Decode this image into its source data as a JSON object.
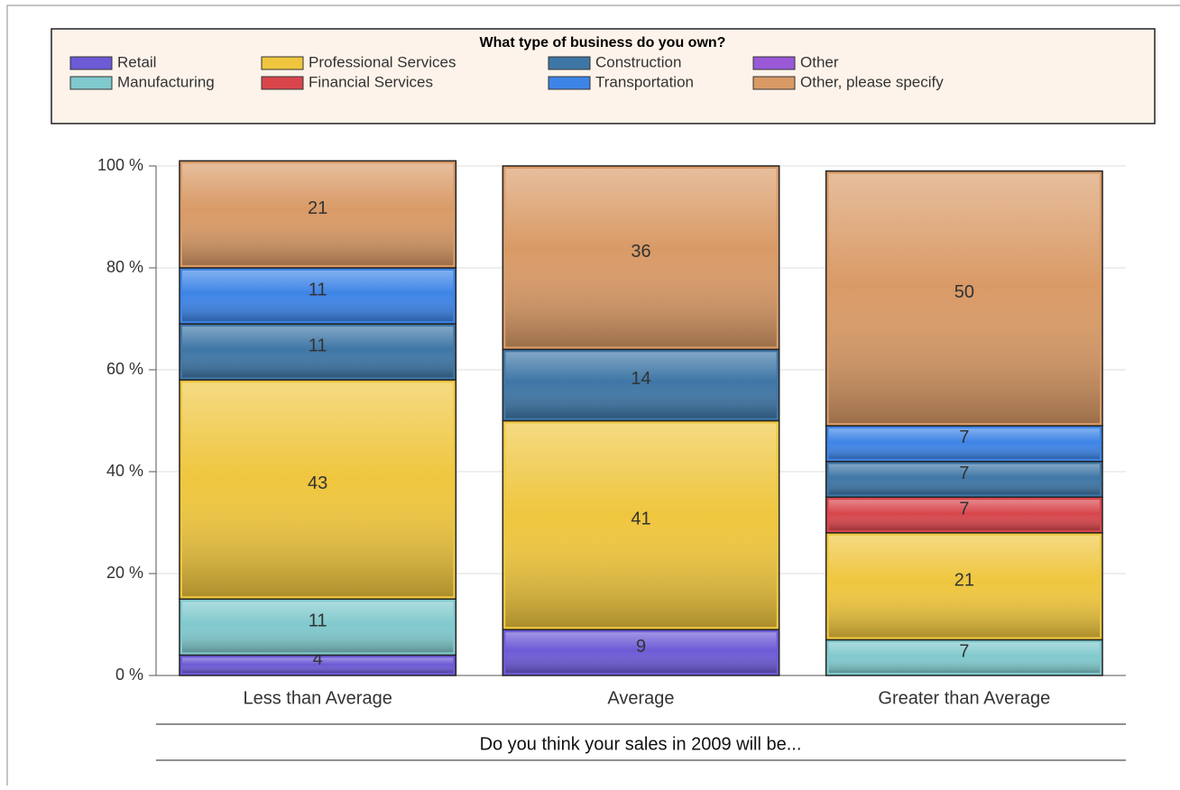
{
  "chart_data": {
    "type": "stacked_bar",
    "legend_title": "What type of business do you own?",
    "xlabel": "Do you think your sales in 2009 will be...",
    "categories": [
      "Less than Average",
      "Average",
      "Greater than Average"
    ],
    "series": [
      {
        "name": "Retail",
        "color": "#6c5ad6",
        "values": [
          4,
          9,
          null
        ]
      },
      {
        "name": "Manufacturing",
        "color": "#80c9cd",
        "values": [
          11,
          null,
          7
        ]
      },
      {
        "name": "Professional Services",
        "color": "#efc63e",
        "values": [
          43,
          41,
          21
        ]
      },
      {
        "name": "Financial Services",
        "color": "#d8464c",
        "values": [
          null,
          null,
          7
        ]
      },
      {
        "name": "Construction",
        "color": "#3e76a6",
        "values": [
          11,
          14,
          7
        ]
      },
      {
        "name": "Transportation",
        "color": "#3d84e6",
        "values": [
          11,
          null,
          7
        ]
      },
      {
        "name": "Other",
        "color": "#9a58d8",
        "values": [
          null,
          null,
          null
        ]
      },
      {
        "name": "Other, please specify",
        "color": "#d99a66",
        "values": [
          21,
          36,
          50
        ]
      }
    ],
    "ylim": [
      0,
      100
    ],
    "yticks": [
      {
        "value": 0,
        "label": "0 %"
      },
      {
        "value": 20,
        "label": "20 %"
      },
      {
        "value": 40,
        "label": "40 %"
      },
      {
        "value": 60,
        "label": "60 %"
      },
      {
        "value": 80,
        "label": "80 %"
      },
      {
        "value": 100,
        "label": "100 %"
      }
    ],
    "grid": true
  }
}
